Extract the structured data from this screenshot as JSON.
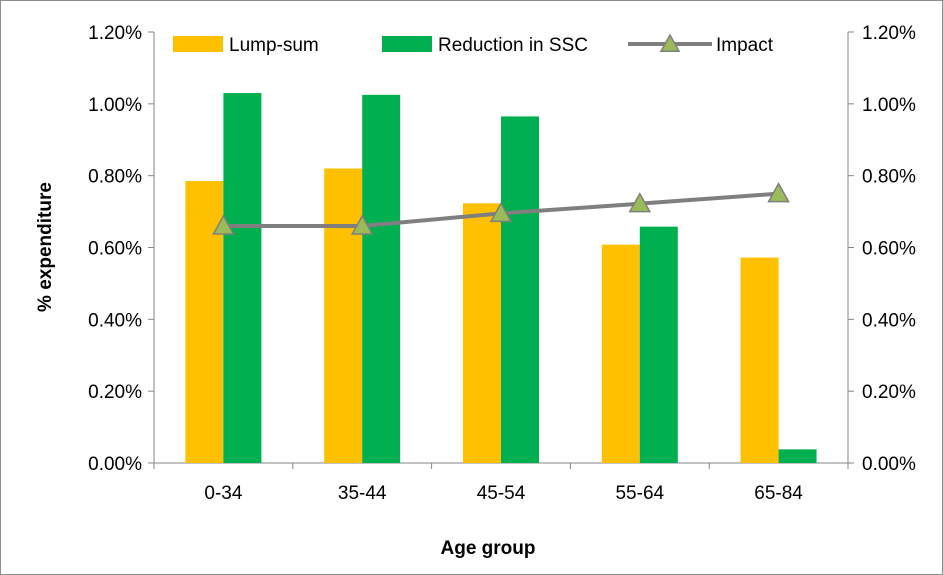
{
  "chart_data": {
    "type": "bar",
    "categories": [
      "0-34",
      "35-44",
      "45-54",
      "55-64",
      "65-84"
    ],
    "series": [
      {
        "name": "Lump-sum",
        "kind": "bar",
        "color": "#FFC000",
        "values": [
          0.785,
          0.82,
          0.723,
          0.608,
          0.572
        ]
      },
      {
        "name": "Reduction in SSC",
        "kind": "bar",
        "color": "#00B050",
        "values": [
          1.03,
          1.025,
          0.965,
          0.658,
          0.038
        ]
      },
      {
        "name": "Impact",
        "kind": "line",
        "color": "#7F7F7F",
        "marker": "triangle",
        "marker_color": "#9BBB59",
        "values": [
          0.66,
          0.66,
          0.695,
          0.722,
          0.75
        ]
      }
    ],
    "xlabel": "Age group",
    "ylabel": "% expenditure",
    "ylim": [
      0,
      1.2
    ],
    "y_ticks": [
      "0.00%",
      "0.20%",
      "0.40%",
      "0.60%",
      "0.80%",
      "1.00%",
      "1.20%"
    ],
    "y2_ticks": [
      "0.00%",
      "0.20%",
      "0.40%",
      "0.60%",
      "0.80%",
      "1.00%",
      "1.20%"
    ],
    "secondary_axis_range": [
      0,
      1.2
    ],
    "grid": false,
    "legend_position": "top"
  }
}
